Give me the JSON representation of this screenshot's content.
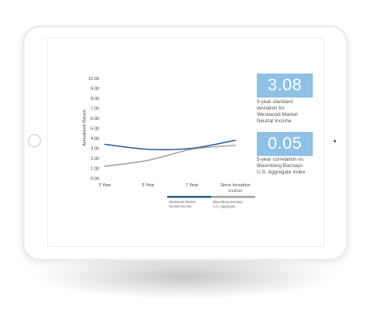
{
  "chart_data": {
    "type": "line",
    "ylabel": "Annualized Return",
    "categories": [
      "3 Year",
      "5 Year",
      "7 Year",
      "Since Inception\n1/1/2010"
    ],
    "y_ticks": [
      "10.00",
      "9.00",
      "8.00",
      "7.00",
      "6.00",
      "5.00",
      "4.00",
      "3.00",
      "2.00",
      "1.00",
      "0.00"
    ],
    "ylim": [
      0,
      10
    ],
    "grid": false,
    "legend_position": "bottom",
    "series": [
      {
        "name": "Westwood Market\nNeutral Income",
        "color": "#2f5f8a",
        "values": [
          3.4,
          2.9,
          3.0,
          3.8
        ]
      },
      {
        "name": "Bloomberg Barclays\nU.S. Aggregate",
        "color": "#a3a3a3",
        "values": [
          1.2,
          1.8,
          2.9,
          3.3
        ]
      }
    ]
  },
  "stats": [
    {
      "value": "3.08",
      "caption": "5-year standard\ndeviation for\nWestwood Market\nNeutral Income"
    },
    {
      "value": "0.05",
      "caption": "5-year correlation vs.\nBloomberg Barclays\nU.S. Aggregate Index"
    }
  ],
  "colors": {
    "accent": "#8ec1e4",
    "primary_series": "#2f5f8a",
    "benchmark_series": "#a3a3a3"
  }
}
